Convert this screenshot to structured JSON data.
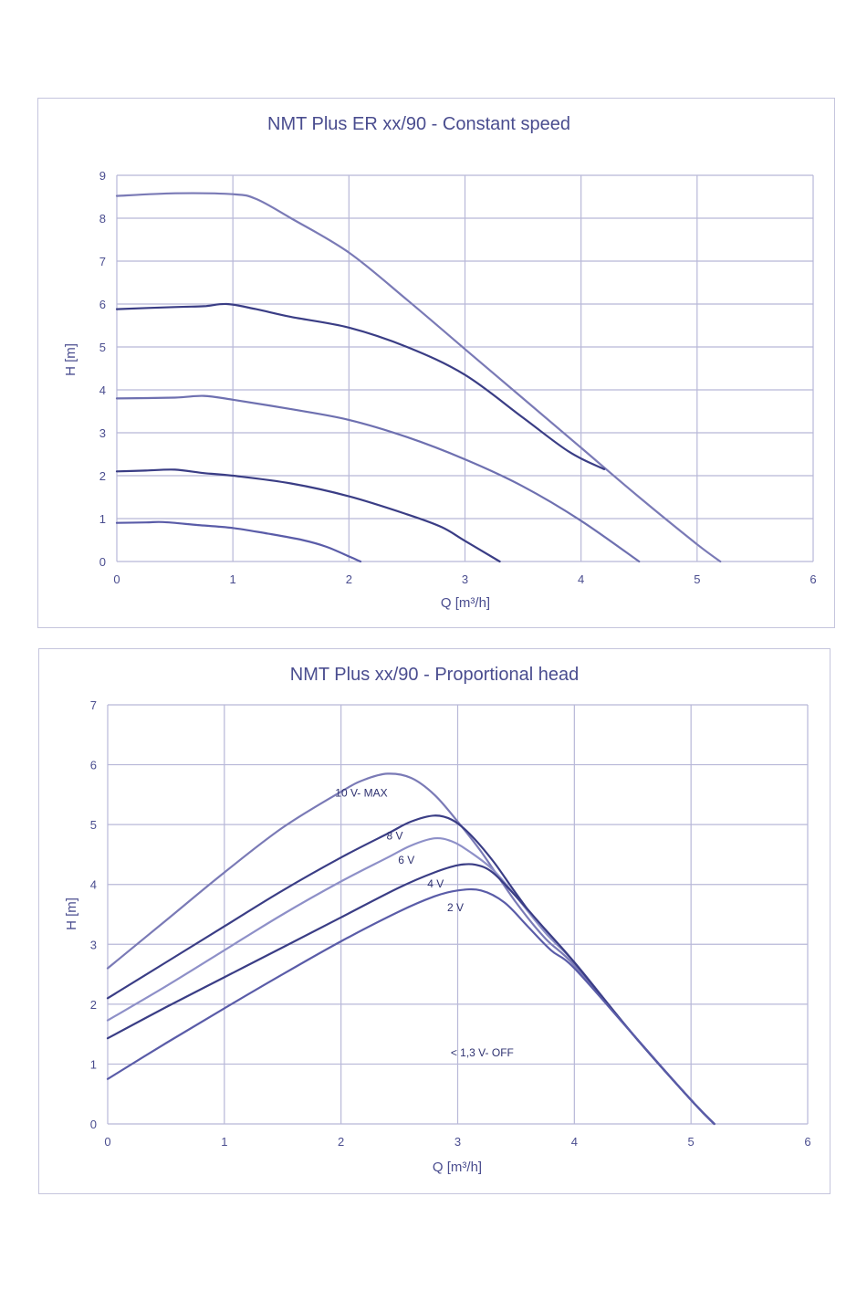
{
  "chart_data": [
    {
      "type": "line",
      "title": "NMT Plus ER xx/90 - Constant speed",
      "xlabel": "Q [m³/h]",
      "ylabel": "H [m]",
      "xlim": [
        0,
        6
      ],
      "ylim": [
        0,
        9
      ],
      "xticks": [
        "0",
        "1",
        "2",
        "3",
        "4",
        "5",
        "6"
      ],
      "yticks": [
        "0",
        "1",
        "2",
        "3",
        "4",
        "5",
        "6",
        "7",
        "8",
        "9"
      ],
      "grid": true,
      "series": [
        {
          "color": "#7a7ab6",
          "x": [
            0,
            0.5,
            1.0,
            1.2,
            1.5,
            2.0,
            2.5,
            3.0,
            3.5,
            4.0,
            4.5,
            5.0,
            5.2
          ],
          "y": [
            8.52,
            8.58,
            8.56,
            8.45,
            8.0,
            7.2,
            6.1,
            4.95,
            3.8,
            2.65,
            1.5,
            0.4,
            0.0
          ]
        },
        {
          "color": "#3a3d85",
          "x": [
            0,
            0.5,
            0.75,
            0.95,
            1.2,
            1.5,
            2.0,
            2.5,
            3.0,
            3.5,
            3.9,
            4.2
          ],
          "y": [
            5.88,
            5.93,
            5.95,
            6.0,
            5.88,
            5.7,
            5.45,
            5.0,
            4.35,
            3.35,
            2.55,
            2.15
          ]
        },
        {
          "color": "#6e70b0",
          "x": [
            0,
            0.5,
            0.75,
            1.0,
            1.5,
            2.0,
            2.5,
            3.0,
            3.5,
            4.0,
            4.5
          ],
          "y": [
            3.8,
            3.82,
            3.86,
            3.77,
            3.55,
            3.3,
            2.9,
            2.38,
            1.75,
            0.95,
            0.0
          ]
        },
        {
          "color": "#3a3d85",
          "x": [
            0,
            0.25,
            0.5,
            0.75,
            1.0,
            1.5,
            2.0,
            2.5,
            2.8,
            3.0,
            3.3
          ],
          "y": [
            2.1,
            2.12,
            2.14,
            2.06,
            2.0,
            1.82,
            1.52,
            1.1,
            0.8,
            0.48,
            0.0
          ]
        },
        {
          "color": "#5a5ca8",
          "x": [
            0,
            0.25,
            0.4,
            0.7,
            1.0,
            1.3,
            1.6,
            1.8,
            2.0,
            2.1
          ],
          "y": [
            0.9,
            0.91,
            0.92,
            0.85,
            0.78,
            0.65,
            0.5,
            0.35,
            0.12,
            0.0
          ]
        }
      ]
    },
    {
      "type": "line",
      "title": "NMT Plus xx/90 - Proportional head",
      "xlabel": "Q [m³/h]",
      "ylabel": "H [m]",
      "xlim": [
        0,
        6
      ],
      "ylim": [
        0,
        7
      ],
      "xticks": [
        "0",
        "1",
        "2",
        "3",
        "4",
        "5",
        "6"
      ],
      "yticks": [
        "0",
        "1",
        "2",
        "3",
        "4",
        "5",
        "6",
        "7"
      ],
      "grid": true,
      "annotations": [
        {
          "text": "10 V- MAX",
          "x": 1.95,
          "y": 5.47
        },
        {
          "text": "8 V",
          "x": 2.39,
          "y": 4.75
        },
        {
          "text": "6 V",
          "x": 2.49,
          "y": 4.35
        },
        {
          "text": "4 V",
          "x": 2.74,
          "y": 3.95
        },
        {
          "text": "2 V",
          "x": 2.91,
          "y": 3.55
        },
        {
          "text": "< 1,3 V- OFF",
          "x": 2.94,
          "y": 1.13
        }
      ],
      "series": [
        {
          "color": "#7a7ab6",
          "x": [
            0,
            0.5,
            1.0,
            1.5,
            2.0,
            2.2,
            2.4,
            2.6,
            2.8,
            3.0,
            3.2,
            3.5,
            3.75,
            4.0,
            4.5,
            5.0,
            5.2
          ],
          "y": [
            2.6,
            3.4,
            4.2,
            4.95,
            5.55,
            5.75,
            5.85,
            5.78,
            5.5,
            5.05,
            4.55,
            3.7,
            3.1,
            2.65,
            1.5,
            0.4,
            0.0
          ]
        },
        {
          "color": "#3a3d85",
          "x": [
            0,
            0.5,
            1.0,
            1.5,
            2.0,
            2.4,
            2.6,
            2.8,
            2.95,
            3.1,
            3.3,
            3.5,
            3.75,
            4.0,
            4.5,
            5.0,
            5.2
          ],
          "y": [
            2.1,
            2.7,
            3.3,
            3.9,
            4.45,
            4.85,
            5.05,
            5.15,
            5.08,
            4.85,
            4.4,
            3.85,
            3.2,
            2.7,
            1.5,
            0.4,
            0.0
          ]
        },
        {
          "color": "#8e90c8",
          "x": [
            0,
            0.5,
            1.0,
            1.5,
            2.0,
            2.4,
            2.6,
            2.8,
            2.95,
            3.1,
            3.3,
            3.5,
            3.75,
            4.0,
            4.5,
            5.0,
            5.2
          ],
          "y": [
            1.73,
            2.3,
            2.9,
            3.5,
            4.05,
            4.45,
            4.65,
            4.77,
            4.72,
            4.55,
            4.25,
            3.8,
            3.2,
            2.7,
            1.5,
            0.4,
            0.0
          ]
        },
        {
          "color": "#3a3d85",
          "x": [
            0,
            0.5,
            1.0,
            1.5,
            2.0,
            2.5,
            2.8,
            3.0,
            3.15,
            3.3,
            3.5,
            3.75,
            4.0,
            4.5,
            5.0,
            5.2
          ],
          "y": [
            1.43,
            1.95,
            2.45,
            2.95,
            3.45,
            3.95,
            4.2,
            4.32,
            4.33,
            4.2,
            3.8,
            3.25,
            2.7,
            1.5,
            0.4,
            0.0
          ]
        },
        {
          "color": "#5a5ca8",
          "x": [
            0,
            0.5,
            1.0,
            1.5,
            2.0,
            2.5,
            2.8,
            3.0,
            3.2,
            3.4,
            3.6,
            3.8,
            4.0,
            4.5,
            5.0,
            5.2
          ],
          "y": [
            0.75,
            1.35,
            1.93,
            2.5,
            3.05,
            3.55,
            3.8,
            3.9,
            3.9,
            3.7,
            3.3,
            2.9,
            2.6,
            1.5,
            0.4,
            0.0
          ]
        }
      ]
    }
  ]
}
